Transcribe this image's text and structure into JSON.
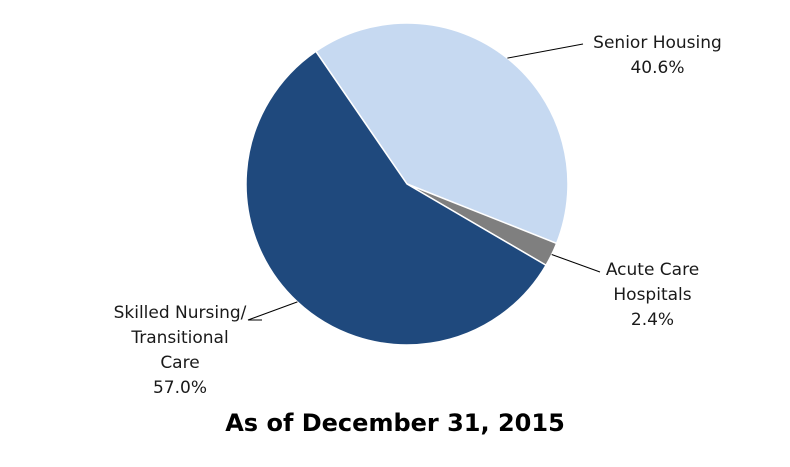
{
  "chart_data": {
    "type": "pie",
    "title": "As of December 31, 2015",
    "slices": [
      {
        "key": "senior",
        "label_lines": [
          "Senior Housing"
        ],
        "value": 40.6,
        "value_label": "40.6%",
        "color": "#c6d9f1"
      },
      {
        "key": "acute",
        "label_lines": [
          "Acute Care",
          "Hospitals"
        ],
        "value": 2.4,
        "value_label": "2.4%",
        "color": "#7f7f7f"
      },
      {
        "key": "skilled",
        "label_lines": [
          "Skilled Nursing/",
          "Transitional",
          "Care"
        ],
        "value": 57.0,
        "value_label": "57.0%",
        "color": "#1f497d"
      }
    ]
  }
}
